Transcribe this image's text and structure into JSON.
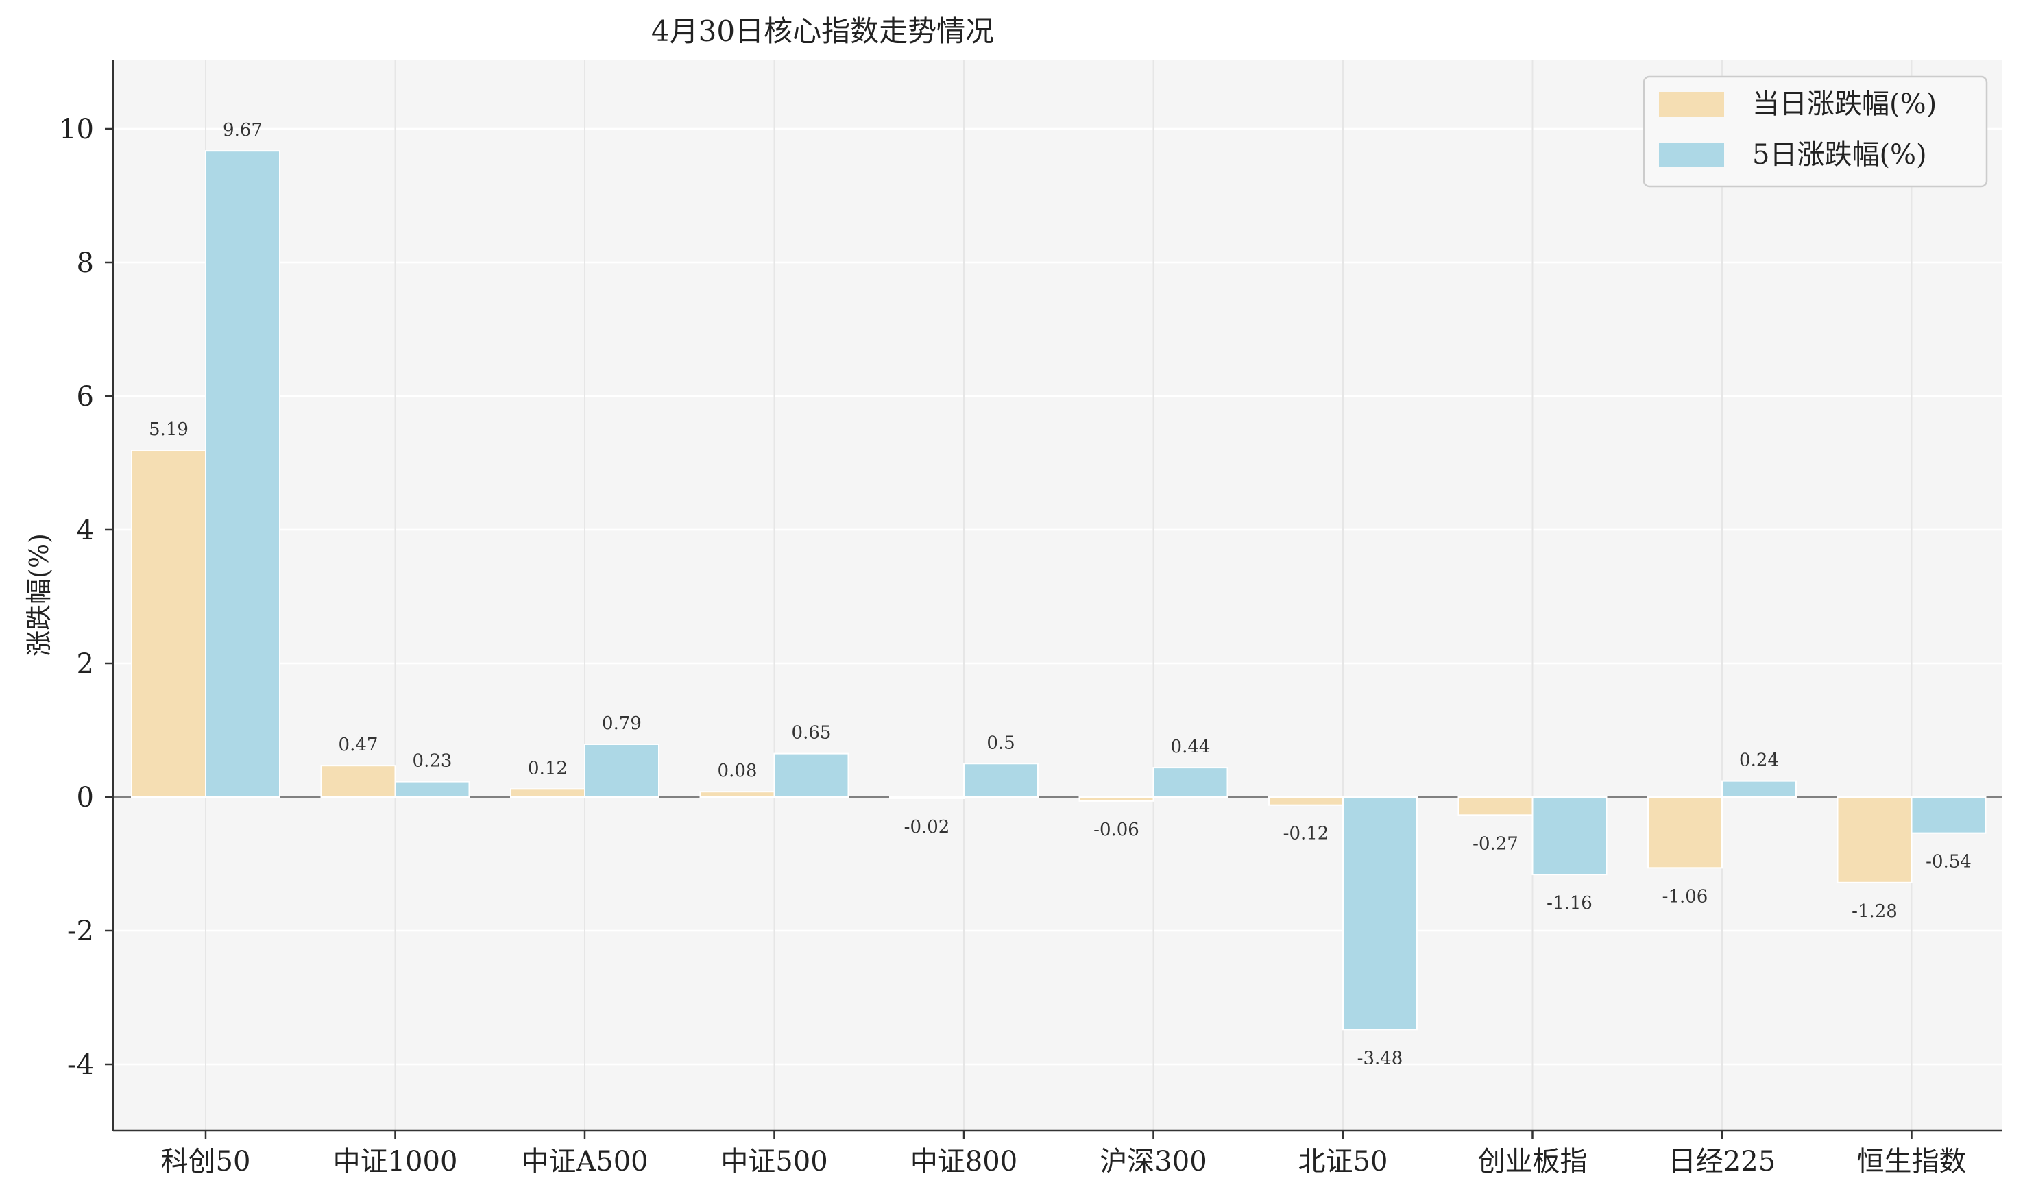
{
  "chart_data": {
    "type": "bar",
    "title": "4月30日核心指数走势情况",
    "xlabel": "",
    "ylabel": "涨跌幅(%)",
    "categories": [
      "科创50",
      "中证1000",
      "中证A500",
      "中证500",
      "中证800",
      "沪深300",
      "北证50",
      "创业板指",
      "日经225",
      "恒生指数"
    ],
    "series": [
      {
        "name": "当日涨跌幅(%)",
        "color": "#f5deb3",
        "values": [
          5.19,
          0.47,
          0.12,
          0.08,
          -0.02,
          -0.06,
          -0.12,
          -0.27,
          -1.06,
          -1.28
        ]
      },
      {
        "name": "5日涨跌幅(%)",
        "color": "#add8e6",
        "values": [
          9.67,
          0.23,
          0.79,
          0.65,
          0.5,
          0.44,
          -3.48,
          -1.16,
          0.24,
          -0.54
        ]
      }
    ],
    "ylim": [
      -5,
      11
    ],
    "yticks": [
      -4,
      -2,
      0,
      2,
      4,
      6,
      8,
      10
    ],
    "grid": true,
    "legend": "top-right",
    "background": "#f5f5f5"
  }
}
